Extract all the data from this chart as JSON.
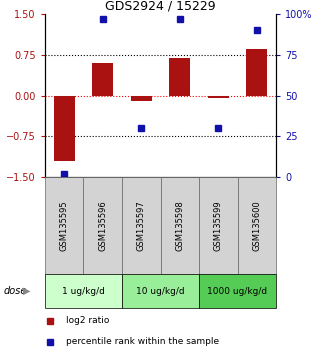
{
  "title": "GDS2924 / 15229",
  "samples": [
    "GSM135595",
    "GSM135596",
    "GSM135597",
    "GSM135598",
    "GSM135599",
    "GSM135600"
  ],
  "log2_ratio": [
    -1.2,
    0.6,
    -0.1,
    0.7,
    -0.05,
    0.85
  ],
  "percentile_rank": [
    2,
    97,
    30,
    97,
    30,
    90
  ],
  "bar_color": "#aa1111",
  "dot_color": "#1111aa",
  "ylim_left": [
    -1.5,
    1.5
  ],
  "ylim_right": [
    0,
    100
  ],
  "yticks_left": [
    -1.5,
    -0.75,
    0,
    0.75,
    1.5
  ],
  "yticks_right": [
    0,
    25,
    50,
    75,
    100
  ],
  "ytick_labels_right": [
    "0",
    "25",
    "50",
    "75",
    "100%"
  ],
  "hlines_black": [
    0.75,
    -0.75
  ],
  "hline_red": 0,
  "dose_groups": [
    {
      "label": "1 ug/kg/d",
      "start": 0,
      "end": 2,
      "color": "#ccffcc"
    },
    {
      "label": "10 ug/kg/d",
      "start": 2,
      "end": 4,
      "color": "#99ee99"
    },
    {
      "label": "1000 ug/kg/d",
      "start": 4,
      "end": 6,
      "color": "#55cc55"
    }
  ],
  "dose_label": "dose",
  "legend_entries": [
    {
      "label": "log2 ratio",
      "color": "#aa1111"
    },
    {
      "label": "percentile rank within the sample",
      "color": "#1111aa"
    }
  ],
  "bar_width": 0.55,
  "sample_bg": "#d3d3d3",
  "sample_edge": "#666666"
}
